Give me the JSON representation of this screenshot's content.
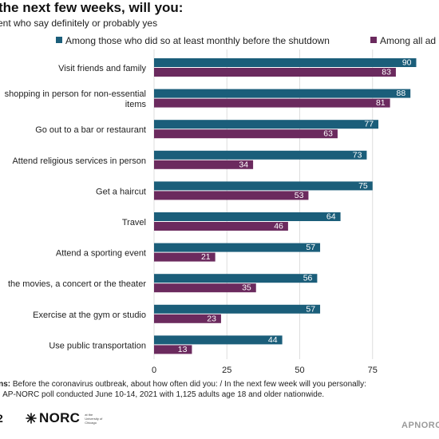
{
  "title": "the next few weeks, will you:",
  "subtitle": "ent who say definitely or probably yes",
  "colors": {
    "series1": "#1b5e7a",
    "series2": "#6b2a5e",
    "grid": "#dddddd",
    "text": "#222222"
  },
  "chart_data": {
    "type": "bar",
    "orientation": "horizontal",
    "categories": [
      "Visit friends and family",
      "shopping in person for non-essential items",
      "Go out to a bar or restaurant",
      "Attend religious services in person",
      "Get a haircut",
      "Travel",
      "Attend a sporting event",
      "the movies, a concert or the theater",
      "Exercise at the gym or studio",
      "Use public transportation"
    ],
    "series": [
      {
        "name": "Among those who did so at least monthly before the shutdown",
        "values": [
          90,
          88,
          77,
          73,
          75,
          64,
          57,
          56,
          57,
          44
        ]
      },
      {
        "name": "Among all ad",
        "values": [
          83,
          81,
          63,
          34,
          53,
          46,
          21,
          35,
          23,
          13
        ]
      }
    ],
    "xticks": [
      "0",
      "25",
      "50",
      "75"
    ],
    "xlim": [
      0,
      100
    ],
    "grid": true,
    "legend": "top"
  },
  "footnote": {
    "questions_label": "ons:",
    "questions_text": "Before the coronavirus outbreak, about how often did you: / In the next few week will you personally:",
    "source_label": "e:",
    "source_text": "AP-NORC poll conducted June 10-14, 2021 with 1,125 adults age 18 and older nationwide."
  },
  "logos": {
    "left": "2",
    "norc": "NORC",
    "norc_small": "at the University of Chicago",
    "apnorc": "APNORC"
  }
}
